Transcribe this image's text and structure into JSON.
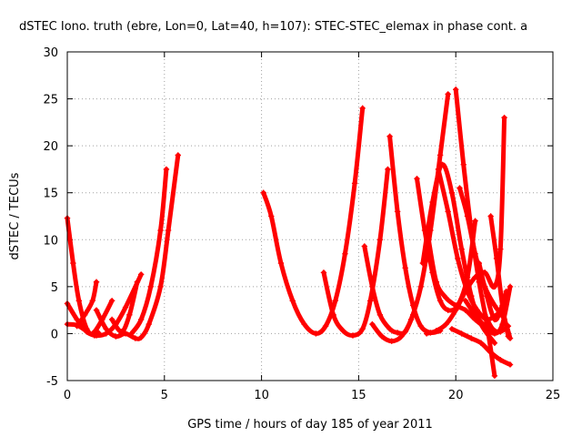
{
  "chart_data": {
    "type": "scatter",
    "title": "dSTEC Iono. truth (ebre, Lon=0, Lat=40, h=107): STEC-STEC_elemax in phase cont. a",
    "xlabel": "GPS time / hours of day 185 of year 2011",
    "ylabel": "dSTEC  / TECUs",
    "xlim": [
      0,
      25
    ],
    "ylim": [
      -5,
      30
    ],
    "xticks": [
      0,
      5,
      10,
      15,
      20,
      25
    ],
    "yticks": [
      -5,
      0,
      5,
      10,
      15,
      20,
      25,
      30
    ],
    "grid": true,
    "marker": "+",
    "color": "#ff0000",
    "series": [
      {
        "x": [
          0.0,
          0.3,
          0.6,
          1.0,
          1.4,
          1.6
        ],
        "y": [
          12.3,
          7.5,
          3.5,
          0.5,
          -0.2,
          0.1
        ]
      },
      {
        "x": [
          0.0,
          0.5,
          1.0,
          1.5,
          2.0,
          2.5,
          3.0,
          3.8
        ],
        "y": [
          3.2,
          1.5,
          0.2,
          -0.2,
          0.0,
          1.0,
          2.8,
          6.3
        ]
      },
      {
        "x": [
          0.0,
          0.5,
          0.9,
          1.3,
          1.8,
          2.3
        ],
        "y": [
          1.0,
          0.9,
          0.4,
          0.0,
          1.5,
          3.5
        ]
      },
      {
        "x": [
          0.5,
          0.9,
          1.3,
          1.5
        ],
        "y": [
          0.8,
          2.0,
          3.5,
          5.5
        ]
      },
      {
        "x": [
          1.5,
          2.0,
          2.5,
          3.0,
          3.5,
          3.8,
          4.2,
          4.8,
          5.2,
          5.7
        ],
        "y": [
          2.5,
          0.5,
          -0.3,
          0.0,
          -0.5,
          -0.4,
          1.0,
          5.0,
          11.0,
          19.0
        ]
      },
      {
        "x": [
          2.3,
          2.8,
          3.2,
          3.6
        ],
        "y": [
          1.5,
          0.2,
          2.0,
          5.5
        ]
      },
      {
        "x": [
          3.3,
          3.8,
          4.3,
          4.8,
          5.1
        ],
        "y": [
          0.0,
          1.5,
          5.0,
          11.0,
          17.5
        ]
      },
      {
        "x": [
          10.1,
          10.5,
          11.0,
          11.6,
          12.2,
          12.8,
          13.3,
          13.8,
          14.3,
          14.8,
          15.2
        ],
        "y": [
          15.0,
          12.5,
          7.5,
          3.5,
          1.0,
          0.0,
          0.8,
          3.5,
          8.5,
          16.0,
          24.0
        ]
      },
      {
        "x": [
          13.2,
          13.7,
          14.2,
          14.7,
          15.2,
          15.6,
          16.1,
          16.5
        ],
        "y": [
          6.5,
          2.0,
          0.3,
          -0.2,
          0.5,
          3.5,
          10.0,
          17.5
        ]
      },
      {
        "x": [
          15.3,
          15.7,
          16.1,
          16.6,
          17.0,
          17.4,
          17.8
        ],
        "y": [
          9.3,
          5.0,
          2.0,
          0.5,
          0.1,
          0.2,
          2.0
        ]
      },
      {
        "x": [
          15.7,
          16.2,
          16.7,
          17.2,
          17.7,
          18.2,
          18.7,
          19.2,
          19.6
        ],
        "y": [
          1.0,
          -0.3,
          -0.8,
          -0.3,
          1.5,
          5.0,
          11.0,
          19.0,
          25.5
        ]
      },
      {
        "x": [
          16.6,
          17.0,
          17.4,
          17.8,
          18.2,
          18.7,
          19.2
        ],
        "y": [
          21.0,
          13.0,
          7.0,
          3.0,
          0.8,
          0.1,
          0.3
        ]
      },
      {
        "x": [
          18.0,
          18.4,
          18.8,
          19.2,
          19.6,
          20.1,
          20.6,
          21.0
        ],
        "y": [
          16.5,
          11.0,
          6.5,
          3.5,
          2.5,
          3.0,
          6.0,
          12.0
        ]
      },
      {
        "x": [
          18.3,
          18.8,
          19.3,
          19.8,
          20.3,
          20.8,
          21.3,
          22.0
        ],
        "y": [
          7.5,
          14.0,
          18.0,
          15.0,
          9.0,
          4.0,
          1.0,
          -1.0
        ]
      },
      {
        "x": [
          18.6,
          19.0,
          19.5,
          20.0,
          20.5,
          21.0,
          21.6
        ],
        "y": [
          10.0,
          5.5,
          3.8,
          3.0,
          2.5,
          1.5,
          0.5
        ]
      },
      {
        "x": [
          19.1,
          19.6,
          20.1,
          20.6,
          21.1,
          21.6,
          22.1
        ],
        "y": [
          17.5,
          13.0,
          8.0,
          4.5,
          2.5,
          1.5,
          2.0
        ]
      },
      {
        "x": [
          20.0,
          20.4,
          20.8,
          21.2,
          21.6,
          22.0
        ],
        "y": [
          26.0,
          18.0,
          11.0,
          5.5,
          1.0,
          -4.5
        ]
      },
      {
        "x": [
          20.2,
          20.6,
          21.0,
          21.5,
          22.0,
          22.5,
          22.8
        ],
        "y": [
          15.5,
          12.5,
          8.5,
          5.0,
          3.0,
          1.5,
          -0.5
        ]
      },
      {
        "x": [
          18.5,
          19.0,
          19.5,
          20.0,
          20.5,
          21.0,
          21.5,
          22.0,
          22.3,
          22.5
        ],
        "y": [
          0.0,
          0.3,
          1.0,
          2.5,
          4.5,
          6.0,
          6.5,
          5.0,
          9.0,
          23.0
        ]
      },
      {
        "x": [
          19.8,
          20.3,
          20.8,
          21.3,
          21.8,
          22.3,
          22.8
        ],
        "y": [
          0.5,
          0.0,
          -0.5,
          -1.0,
          -2.0,
          -2.8,
          -3.3
        ]
      },
      {
        "x": [
          20.5,
          21.0,
          21.5,
          22.0,
          22.4,
          22.8
        ],
        "y": [
          3.5,
          2.0,
          0.8,
          0.0,
          1.0,
          5.0
        ]
      },
      {
        "x": [
          21.2,
          21.6,
          22.0,
          22.3,
          22.6
        ],
        "y": [
          7.5,
          4.0,
          1.5,
          2.5,
          4.5
        ]
      },
      {
        "x": [
          21.5,
          21.9,
          22.3,
          22.7
        ],
        "y": [
          2.0,
          0.5,
          0.2,
          0.8
        ]
      },
      {
        "x": [
          21.8,
          22.1,
          22.4,
          22.7
        ],
        "y": [
          12.5,
          8.0,
          3.0,
          -0.3
        ]
      }
    ]
  }
}
